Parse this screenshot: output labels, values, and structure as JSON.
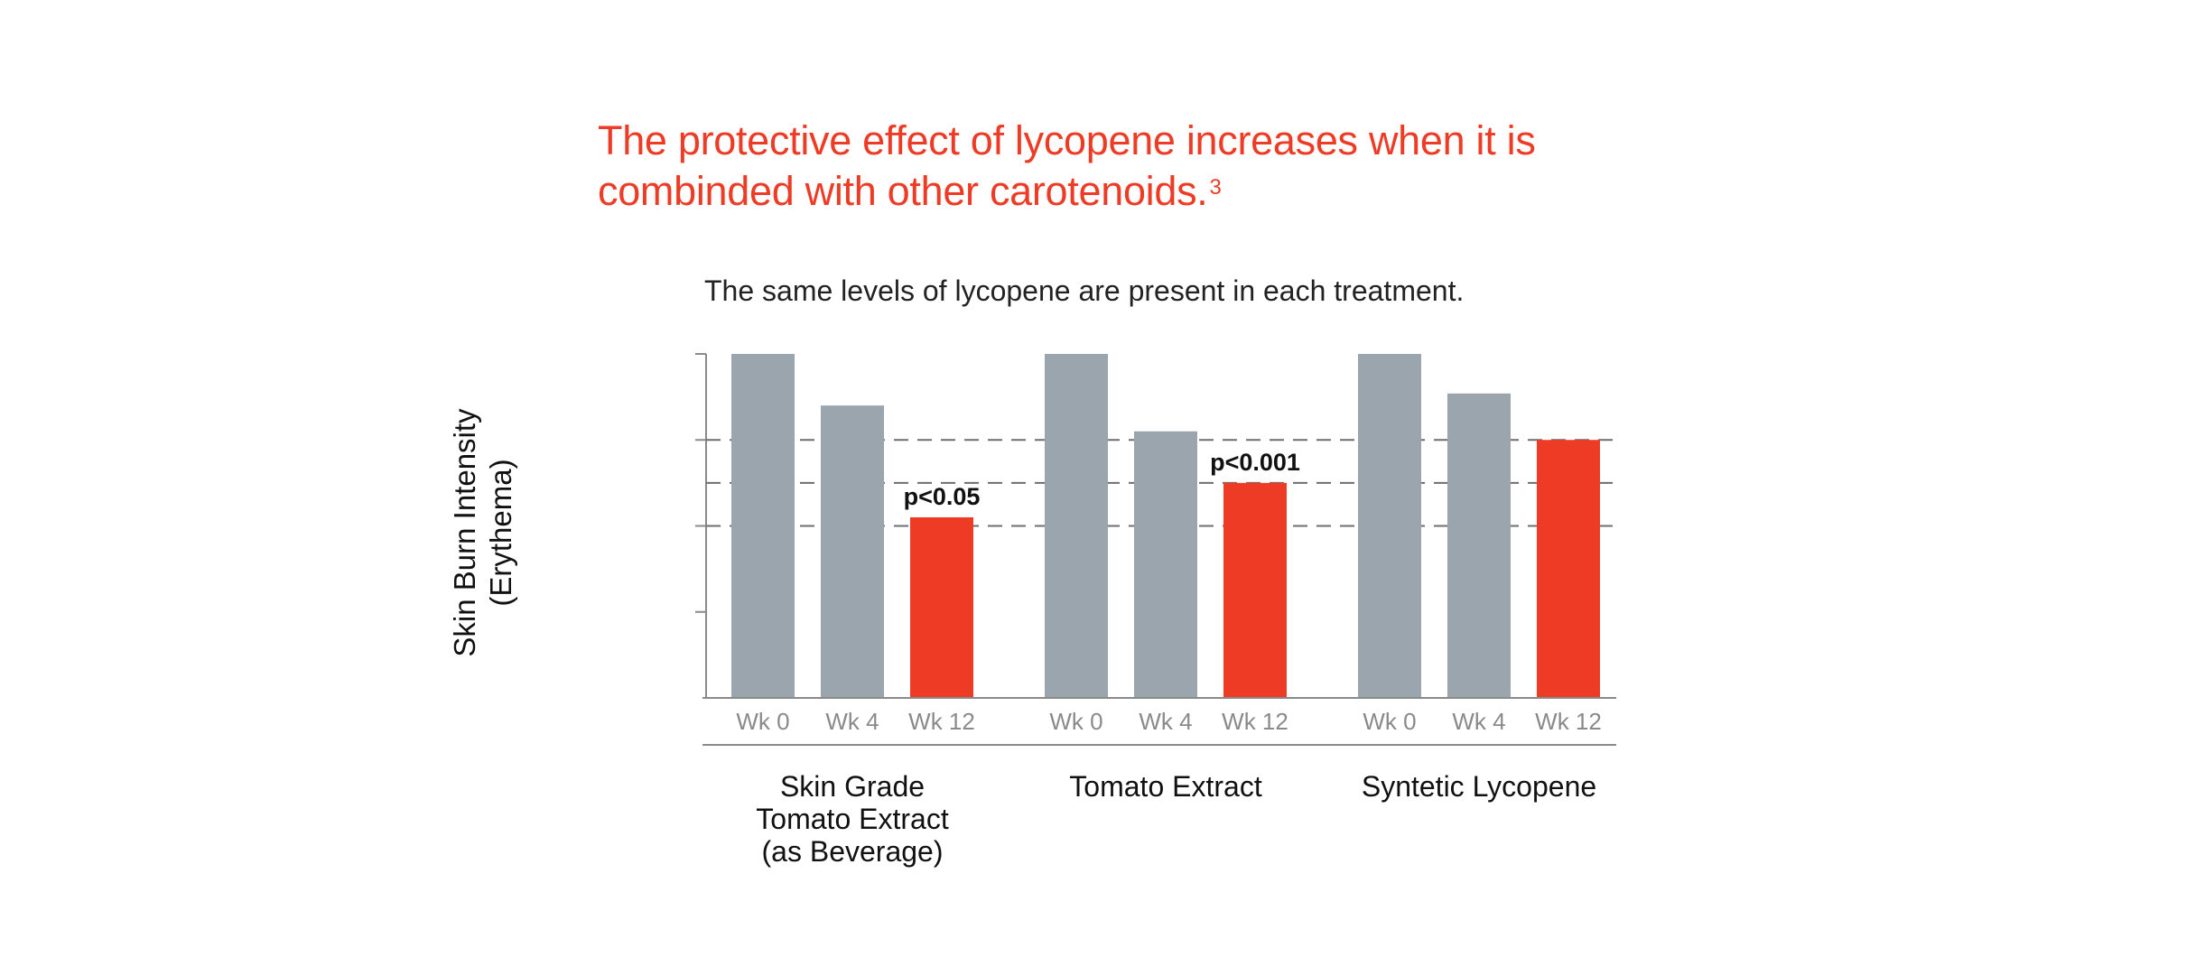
{
  "headline": {
    "text": "The protective effect of lycopene increases when it is combinded with other carotenoids.",
    "superscript": "3"
  },
  "colors": {
    "accent": "#ee3b25",
    "bar_gray": "#9aa5ad",
    "bar_red": "#ee3b25",
    "axis": "#8a8a8a",
    "gridline": "#6e6e6e",
    "tick_text": "#8a8a8a"
  },
  "chart_data": {
    "type": "bar",
    "title": "",
    "subtitle": "The same levels of lycopene are present in each treatment.",
    "ylabel": "Skin Burn Intensity (Erythema)",
    "ylabel_lines": [
      "Skin Burn Intensity",
      "(Erythema)"
    ],
    "xlabel": "",
    "ylim": [
      0,
      100
    ],
    "ytick_labels": "none",
    "dashed_reference_lines": [
      75,
      62.5,
      50
    ],
    "categories": [
      "Wk 0",
      "Wk 4",
      "Wk 12"
    ],
    "groups": [
      {
        "name": "Skin Grade Tomato Extract (as Beverage)",
        "label_lines": [
          "Skin Grade",
          "Tomato Extract",
          "(as Beverage)"
        ],
        "values": [
          100,
          85,
          52.5
        ],
        "highlight_index": 2,
        "annotation": "p<0.05"
      },
      {
        "name": "Tomato Extract",
        "label_lines": [
          "Tomato Extract"
        ],
        "values": [
          100,
          77.5,
          62.5
        ],
        "highlight_index": 2,
        "annotation": "p<0.001"
      },
      {
        "name": "Syntetic Lycopene",
        "label_lines": [
          "Syntetic Lycopene"
        ],
        "values": [
          100,
          88.5,
          75
        ],
        "highlight_index": 2,
        "annotation": ""
      }
    ],
    "legend": "none",
    "grid": false
  }
}
